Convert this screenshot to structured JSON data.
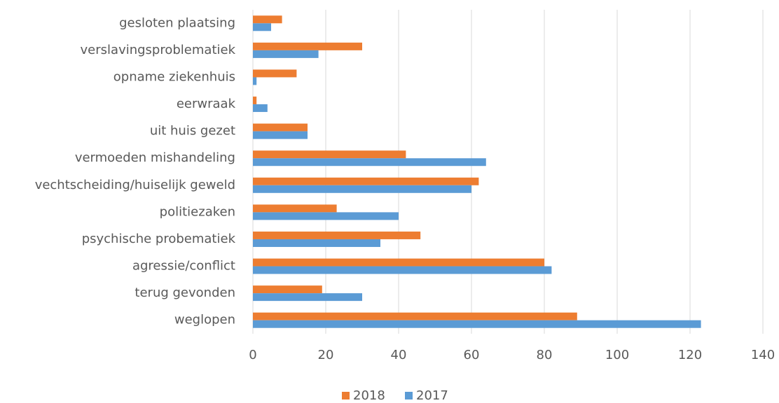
{
  "chart_data": {
    "type": "bar",
    "orientation": "horizontal",
    "categories": [
      "gesloten plaatsing",
      "verslavingsproblematiek",
      "opname ziekenhuis",
      "eerwraak",
      "uit huis gezet",
      "vermoeden mishandeling",
      "vechtscheiding/huiselijk geweld",
      "politiezaken",
      "psychische probematiek",
      "agressie/conflict",
      "terug gevonden",
      "weglopen"
    ],
    "series": [
      {
        "name": "2018",
        "color": "#ed7d31",
        "values": [
          8,
          30,
          12,
          1,
          15,
          42,
          62,
          23,
          46,
          80,
          19,
          89
        ]
      },
      {
        "name": "2017",
        "color": "#5b9bd5",
        "values": [
          5,
          18,
          1,
          4,
          15,
          64,
          60,
          40,
          35,
          82,
          30,
          123
        ]
      }
    ],
    "xlim": [
      0,
      140
    ],
    "xticks": [
      0,
      20,
      40,
      60,
      80,
      100,
      120,
      140
    ],
    "grid": true,
    "legend": "bottom"
  }
}
